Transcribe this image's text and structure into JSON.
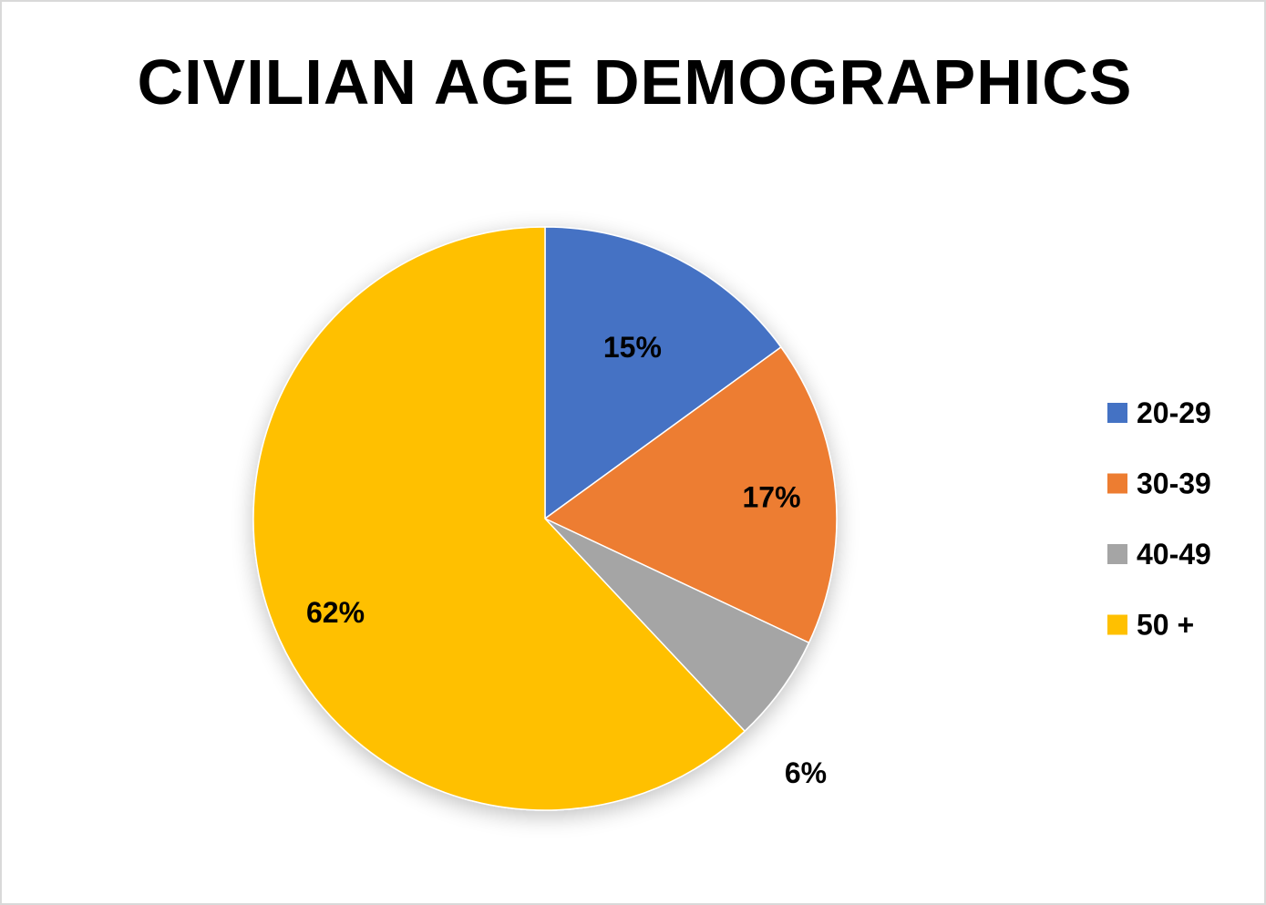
{
  "chart_data": {
    "type": "pie",
    "title": "CIVILIAN AGE DEMOGRAPHICS",
    "categories": [
      "20-29",
      "30-39",
      "40-49",
      "50 +"
    ],
    "values": [
      15,
      17,
      6,
      62
    ],
    "data_labels": [
      "15%",
      "17%",
      "6%",
      "62%"
    ],
    "colors": [
      "#4472C4",
      "#ED7D31",
      "#A5A5A5",
      "#FFC000"
    ],
    "start_angle": "12 o'clock",
    "direction": "clockwise",
    "legend_position": "right"
  }
}
